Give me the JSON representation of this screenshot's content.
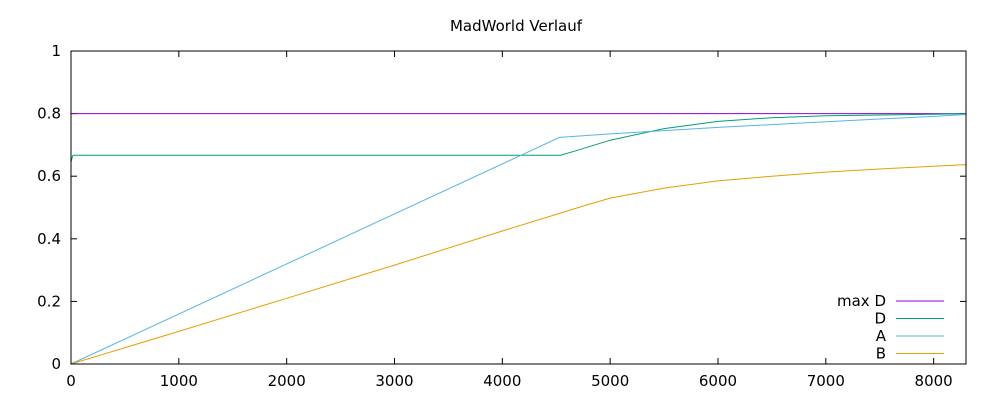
{
  "chart_data": {
    "type": "line",
    "title": "MadWorld Verlauf",
    "xlabel": "",
    "ylabel": "",
    "xlim": [
      0,
      8300
    ],
    "ylim": [
      0,
      1
    ],
    "x_ticks": [
      0,
      1000,
      2000,
      3000,
      4000,
      5000,
      6000,
      7000,
      8000
    ],
    "y_ticks": [
      0,
      0.2,
      0.4,
      0.6,
      0.8,
      1
    ],
    "grid": false,
    "legend_position": "bottom-right",
    "series": [
      {
        "name": "max D",
        "color": "#9400d3",
        "x": [
          0,
          6930,
          8300
        ],
        "y": [
          0.8,
          0.8,
          0.8
        ]
      },
      {
        "name": "D",
        "color": "#009e73",
        "x": [
          0,
          15,
          30,
          4540,
          4700,
          5000,
          5500,
          6000,
          6500,
          7000,
          8000,
          8300
        ],
        "y": [
          0.645,
          0.665,
          0.667,
          0.667,
          0.683,
          0.715,
          0.752,
          0.775,
          0.787,
          0.793,
          0.798,
          0.8
        ]
      },
      {
        "name": "A",
        "color": "#56b4e9",
        "x": [
          0,
          4530,
          5000,
          6000,
          7000,
          8000,
          8300
        ],
        "y": [
          0,
          0.724,
          0.735,
          0.756,
          0.774,
          0.791,
          0.797
        ]
      },
      {
        "name": "B",
        "color": "#e69f00",
        "x": [
          0,
          1000,
          2000,
          3000,
          4000,
          4530,
          4800,
          5000,
          5500,
          6000,
          6500,
          7000,
          7500,
          8000,
          8300
        ],
        "y": [
          0,
          0.104,
          0.21,
          0.316,
          0.425,
          0.481,
          0.51,
          0.53,
          0.562,
          0.585,
          0.6,
          0.613,
          0.623,
          0.632,
          0.637
        ]
      }
    ]
  }
}
